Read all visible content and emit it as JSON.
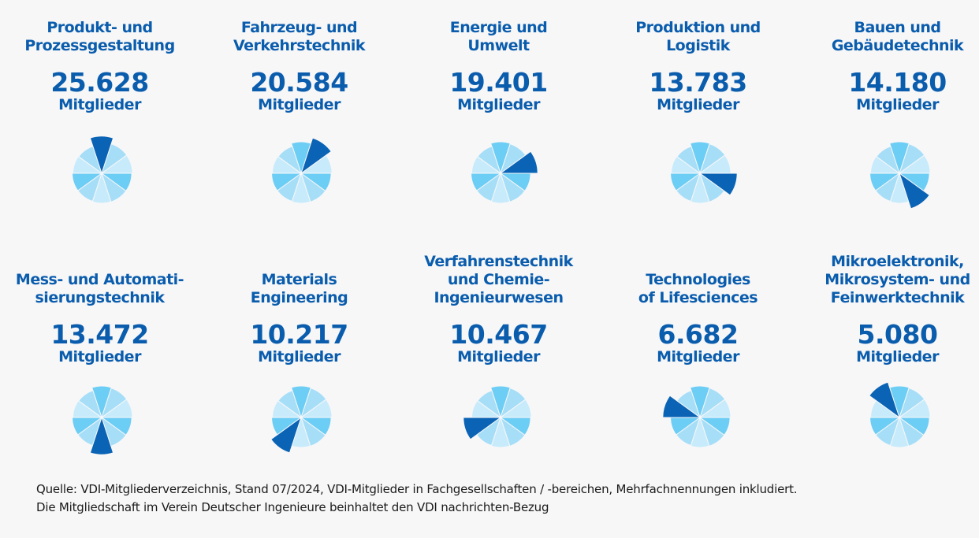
{
  "chart_data": {
    "type": "pie",
    "unit_label": "Mitglieder",
    "slice_colors": [
      "#6ccdf5",
      "#a6def8",
      "#c8ebfb",
      "#6ccdf5",
      "#a6def8",
      "#c8ebfb",
      "#a6def8",
      "#6ccdf5",
      "#c8ebfb",
      "#a6def8"
    ],
    "highlight_color": "#0a63b4",
    "categories": [
      "Produkt- und Prozessgestaltung",
      "Fahrzeug- und Verkehrstechnik",
      "Energie und Umwelt",
      "Produktion und Logistik",
      "Bauen und Gebäudetechnik",
      "Mess- und Automatisierungstechnik",
      "Materials Engineering",
      "Verfahrenstechnik und Chemie-Ingenieurwesen",
      "Technologies of Lifesciences",
      "Mikroelektronik, Mikrosystem- und Feinwerktechnik"
    ],
    "values": [
      25628,
      20584,
      19401,
      13783,
      14180,
      13472,
      10217,
      10467,
      6682,
      5080
    ],
    "panels": [
      {
        "title": "Produkt- und\nProzessgestaltung",
        "value_text": "25.628",
        "value": 25628,
        "highlight_index": 0
      },
      {
        "title": "Fahrzeug- und\nVerkehrstechnik",
        "value_text": "20.584",
        "value": 20584,
        "highlight_index": 1
      },
      {
        "title": "Energie und\nUmwelt",
        "value_text": "19.401",
        "value": 19401,
        "highlight_index": 2
      },
      {
        "title": "Produktion und\nLogistik",
        "value_text": "13.783",
        "value": 13783,
        "highlight_index": 3
      },
      {
        "title": "Bauen und\nGebäudetechnik",
        "value_text": "14.180",
        "value": 14180,
        "highlight_index": 4
      },
      {
        "title": "Mess- und Automati-\nsierungstechnik",
        "value_text": "13.472",
        "value": 13472,
        "highlight_index": 5
      },
      {
        "title": "Materials\nEngineering",
        "value_text": "10.217",
        "value": 10217,
        "highlight_index": 6
      },
      {
        "title": "Verfahrenstechnik\nund Chemie-\nIngenieurwesen",
        "value_text": "10.467",
        "value": 10467,
        "highlight_index": 7
      },
      {
        "title": "Technologies\nof Lifesciences",
        "value_text": "6.682",
        "value": 6682,
        "highlight_index": 8
      },
      {
        "title": "Mikroelektronik,\nMikrosystem- und\nFeinwerktechnik",
        "value_text": "5.080",
        "value": 5080,
        "highlight_index": 9
      }
    ]
  },
  "source": {
    "line1": "Quelle: VDI-Mitgliederverzeichnis, Stand 07/2024, VDI-Mitglieder in Fachgesellschaften / -bereichen, Mehrfachnennungen inkludiert.",
    "line2": "Die Mitgliedschaft im Verein Deutscher Ingenieure beinhaltet den VDI nachrichten-Bezug"
  }
}
